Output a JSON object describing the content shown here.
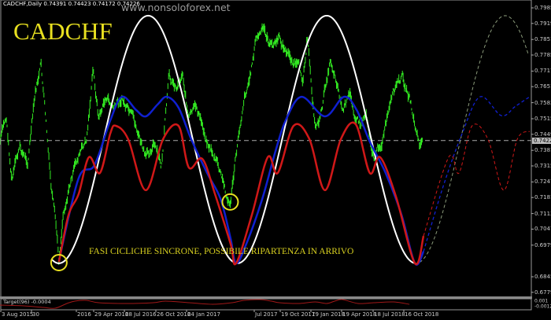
{
  "header": {
    "symbol_line": "CADCHF,Daily  0.74391 0.74423 0.74172 0.74226",
    "watermark": "www.nonsoloforex.net"
  },
  "chart_data": {
    "type": "line",
    "title": "CADCHF",
    "annotation": "FASI CICLICHE SINCRONE, POSSIBILE RIPARTENZA IN ARRIVO",
    "grid": false,
    "colors": {
      "price": "#33ee22",
      "sine": "#ffffff",
      "sine_projection": "#8a9a7a",
      "blue": "#1020d0",
      "red": "#d01818",
      "circle": "#e8e020",
      "indicator": "#a01818"
    },
    "y_ticks": [
      "0.79850",
      "0.79190",
      "0.78510",
      "0.77850",
      "0.77170",
      "0.76510",
      "0.75830",
      "0.75150",
      "0.74490",
      "0.73810",
      "0.73150",
      "0.72470",
      "0.71810",
      "0.71130",
      "0.70470",
      "0.69790",
      "0.68450",
      "0.67790"
    ],
    "current_price": "0.74226",
    "ylim": [
      0.6779,
      0.7985
    ],
    "x_ticks": [
      "3 Aug 2015",
      "30",
      "2016",
      "29 Apr 2016",
      "28 Jul 2016",
      "26 Oct 2016",
      "24 Jan 2017",
      "Jul 2017",
      "19 Oct 2017",
      "19 Jan 2018",
      "19 Apr 2018",
      "18 Jul 2018",
      "16 Oct 2018"
    ],
    "price": [
      [
        "2015-08-03",
        0.7418
      ],
      [
        "2015-08-21",
        0.7518
      ],
      [
        "2015-09-06",
        0.7252
      ],
      [
        "2015-09-29",
        0.7385
      ],
      [
        "2015-10-22",
        0.7335
      ],
      [
        "2015-11-14",
        0.7618
      ],
      [
        "2015-11-30",
        0.7735
      ],
      [
        "2015-12-13",
        0.7518
      ],
      [
        "2015-12-29",
        0.7218
      ],
      [
        "2016-01-14",
        0.7018
      ],
      [
        "2016-01-21",
        0.6902
      ],
      [
        "2016-02-02",
        0.7118
      ],
      [
        "2016-02-20",
        0.7235
      ],
      [
        "2016-03-18",
        0.7352
      ],
      [
        "2016-04-10",
        0.7418
      ],
      [
        "2016-04-29",
        0.7718
      ],
      [
        "2016-05-15",
        0.7518
      ],
      [
        "2016-06-06",
        0.7602
      ],
      [
        "2016-06-29",
        0.7552
      ],
      [
        "2016-07-22",
        0.7602
      ],
      [
        "2016-08-14",
        0.7518
      ],
      [
        "2016-09-06",
        0.7452
      ],
      [
        "2016-09-29",
        0.7335
      ],
      [
        "2016-10-21",
        0.7418
      ],
      [
        "2016-11-13",
        0.7302
      ],
      [
        "2016-12-06",
        0.7685
      ],
      [
        "2016-12-29",
        0.7652
      ],
      [
        "2017-01-14",
        0.7718
      ],
      [
        "2017-02-01",
        0.7518
      ],
      [
        "2017-02-24",
        0.7552
      ],
      [
        "2017-03-23",
        0.7435
      ],
      [
        "2017-04-22",
        0.7335
      ],
      [
        "2017-05-15",
        0.7218
      ],
      [
        "2017-05-31",
        0.7145
      ],
      [
        "2017-06-18",
        0.7352
      ],
      [
        "2017-07-11",
        0.7618
      ],
      [
        "2017-07-29",
        0.7702
      ],
      [
        "2017-08-14",
        0.7852
      ],
      [
        "2017-09-06",
        0.7885
      ],
      [
        "2017-09-29",
        0.7818
      ],
      [
        "2017-10-22",
        0.7852
      ],
      [
        "2017-11-14",
        0.7785
      ],
      [
        "2017-12-07",
        0.7752
      ],
      [
        "2017-12-29",
        0.7685
      ],
      [
        "2018-01-10",
        0.7868
      ],
      [
        "2018-02-02",
        0.7485
      ],
      [
        "2018-02-18",
        0.7518
      ],
      [
        "2018-03-08",
        0.7685
      ],
      [
        "2018-03-19",
        0.7768
      ],
      [
        "2018-04-07",
        0.7685
      ],
      [
        "2018-04-23",
        0.7552
      ],
      [
        "2018-05-15",
        0.7602
      ],
      [
        "2018-06-14",
        0.7485
      ],
      [
        "2018-06-30",
        0.7552
      ],
      [
        "2018-07-23",
        0.7352
      ],
      [
        "2018-08-15",
        0.7418
      ],
      [
        "2018-09-07",
        0.7552
      ],
      [
        "2018-09-29",
        0.7652
      ],
      [
        "2018-10-15",
        0.7685
      ],
      [
        "2018-11-03",
        0.7602
      ],
      [
        "2018-11-19",
        0.7485
      ],
      [
        "2018-12-02",
        0.7402
      ],
      [
        "2018-12-12",
        0.7423
      ]
    ],
    "sine": {
      "trough_date": "2016-01-21",
      "period_days": 518,
      "min": 0.6902,
      "max": 0.7952,
      "projection_from": "2018-11-19",
      "end": "2019-10-18"
    },
    "blue": [
      [
        "2016-01-21",
        0.6912
      ],
      [
        "2016-03-18",
        0.7262
      ],
      [
        "2016-05-03",
        0.7318
      ],
      [
        "2016-06-18",
        0.7508
      ],
      [
        "2016-07-22",
        0.7608
      ],
      [
        "2016-09-01",
        0.7552
      ],
      [
        "2016-09-29",
        0.7525
      ],
      [
        "2016-11-02",
        0.7575
      ],
      [
        "2016-11-29",
        0.7608
      ],
      [
        "2017-01-02",
        0.7562
      ],
      [
        "2017-02-08",
        0.7428
      ],
      [
        "2017-03-26",
        0.7285
      ],
      [
        "2017-05-04",
        0.7175
      ],
      [
        "2017-06-02",
        0.7008
      ],
      [
        "2017-06-18",
        0.6902
      ],
      [
        "2017-07-18",
        0.6985
      ],
      [
        "2017-09-02",
        0.7175
      ],
      [
        "2017-10-10",
        0.7375
      ],
      [
        "2017-11-09",
        0.7508
      ],
      [
        "2017-12-25",
        0.7608
      ],
      [
        "2018-03-03",
        0.7525
      ],
      [
        "2018-04-27",
        0.7608
      ],
      [
        "2018-06-03",
        0.7552
      ],
      [
        "2018-07-11",
        0.7418
      ],
      [
        "2018-08-26",
        0.7285
      ],
      [
        "2018-10-11",
        0.7108
      ],
      [
        "2018-11-19",
        0.6902
      ],
      [
        "2018-12-14",
        0.6952
      ]
    ],
    "blue_projection": [
      [
        "2018-12-14",
        0.6952
      ],
      [
        "2019-02-09",
        0.7228
      ],
      [
        "2019-04-05",
        0.7452
      ],
      [
        "2019-05-27",
        0.7608
      ],
      [
        "2019-07-28",
        0.7528
      ],
      [
        "2019-09-07",
        0.7568
      ],
      [
        "2019-10-18",
        0.7608
      ]
    ],
    "red": [
      [
        "2016-01-21",
        0.6908
      ],
      [
        "2016-02-18",
        0.7108
      ],
      [
        "2016-03-18",
        0.7195
      ],
      [
        "2016-04-17",
        0.7352
      ],
      [
        "2016-05-19",
        0.7285
      ],
      [
        "2016-06-18",
        0.7452
      ],
      [
        "2016-07-04",
        0.7485
      ],
      [
        "2016-08-09",
        0.7428
      ],
      [
        "2016-09-29",
        0.7212
      ],
      [
        "2016-11-18",
        0.7428
      ],
      [
        "2017-01-02",
        0.7485
      ],
      [
        "2017-02-01",
        0.7308
      ],
      [
        "2017-03-12",
        0.7345
      ],
      [
        "2017-04-18",
        0.7195
      ],
      [
        "2017-06-02",
        0.6985
      ],
      [
        "2017-06-18",
        0.6902
      ],
      [
        "2017-08-03",
        0.7108
      ],
      [
        "2017-09-18",
        0.7352
      ],
      [
        "2017-10-17",
        0.7285
      ],
      [
        "2017-12-02",
        0.7485
      ],
      [
        "2018-01-17",
        0.7428
      ],
      [
        "2018-03-03",
        0.7212
      ],
      [
        "2018-04-18",
        0.7428
      ],
      [
        "2018-05-31",
        0.7492
      ],
      [
        "2018-07-11",
        0.7285
      ],
      [
        "2018-08-10",
        0.7352
      ],
      [
        "2018-09-25",
        0.7185
      ],
      [
        "2018-11-19",
        0.6902
      ],
      [
        "2018-12-14",
        0.7018
      ]
    ],
    "red_projection": [
      [
        "2018-12-14",
        0.7018
      ],
      [
        "2019-02-25",
        0.7352
      ],
      [
        "2019-03-27",
        0.7285
      ],
      [
        "2019-05-04",
        0.7485
      ],
      [
        "2019-06-19",
        0.7428
      ],
      [
        "2019-08-04",
        0.7212
      ],
      [
        "2019-09-12",
        0.7428
      ],
      [
        "2019-10-18",
        0.7462
      ]
    ],
    "circles": [
      [
        "2016-01-21",
        0.6905
      ],
      [
        "2017-06-01",
        0.7162
      ]
    ],
    "indicator": {
      "label": "Target(96) -0.0004",
      "ticks": [
        "0.001",
        "-0.0012"
      ],
      "ylim": [
        -0.0012,
        0.001
      ],
      "values": [
        [
          "2015-08-03",
          -0.0004
        ],
        [
          "2015-10-11",
          -0.0006
        ],
        [
          "2015-12-07",
          -0.001
        ],
        [
          "2016-01-10",
          -0.0012
        ],
        [
          "2016-02-13",
          0.0
        ],
        [
          "2016-03-07",
          0.0006
        ],
        [
          "2016-04-10",
          0.0008
        ],
        [
          "2016-05-15",
          0.0002
        ],
        [
          "2016-08-02",
          0.0
        ],
        [
          "2016-10-21",
          0.0002
        ],
        [
          "2016-11-25",
          0.0006
        ],
        [
          "2017-02-01",
          0.0002
        ],
        [
          "2017-04-11",
          -0.0002
        ],
        [
          "2017-06-07",
          0.0002
        ],
        [
          "2017-07-11",
          0.0008
        ],
        [
          "2017-08-26",
          0.001
        ],
        [
          "2017-09-29",
          0.0006
        ],
        [
          "2017-10-22",
          0.0002
        ],
        [
          "2017-12-18",
          0.0
        ],
        [
          "2018-02-02",
          0.0004
        ],
        [
          "2018-03-08",
          0.0
        ],
        [
          "2018-03-31",
          0.0006
        ],
        [
          "2018-04-23",
          0.001
        ],
        [
          "2018-06-07",
          0.0
        ],
        [
          "2018-07-23",
          0.0002
        ],
        [
          "2018-09-18",
          0.0004
        ],
        [
          "2018-11-03",
          -0.0002
        ]
      ]
    }
  }
}
